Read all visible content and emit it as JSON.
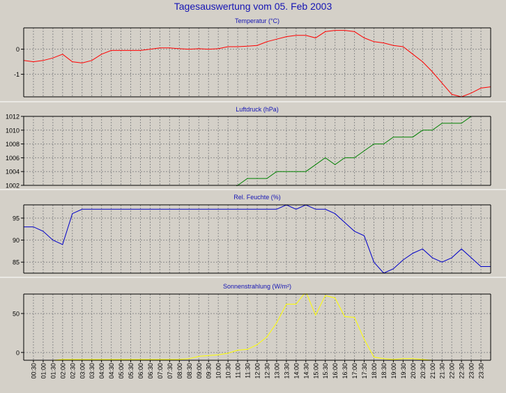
{
  "page": {
    "title": "Tagesauswertung vom 05. Feb 2003"
  },
  "colors": {
    "background": "#d4d0c8",
    "plot_background": "#d4d0c8",
    "title_color": "#1414b4",
    "grid": "#8a8a8a"
  },
  "chart_data": [
    {
      "type": "line",
      "title": "Temperatur (°C)",
      "color": "#ff0000",
      "ylim": [
        -1.9,
        0.85
      ],
      "yticks": [
        0,
        -1
      ],
      "yticklabels": [
        "0",
        "-1"
      ],
      "grid": true,
      "show_xticklabels": false,
      "x": [
        "00:00",
        "00:30",
        "01:00",
        "01:30",
        "02:00",
        "02:30",
        "03:00",
        "03:30",
        "04:00",
        "04:30",
        "05:00",
        "05:30",
        "06:00",
        "06:30",
        "07:00",
        "07:30",
        "08:00",
        "08:30",
        "09:00",
        "09:30",
        "10:00",
        "10:30",
        "11:00",
        "11:30",
        "12:00",
        "12:30",
        "13:00",
        "13:30",
        "14:00",
        "14:30",
        "15:00",
        "15:30",
        "16:00",
        "16:30",
        "17:00",
        "17:30",
        "18:00",
        "18:30",
        "19:00",
        "19:30",
        "20:00",
        "20:30",
        "21:00",
        "21:30",
        "22:00",
        "22:30",
        "23:00",
        "23:30",
        "24:00"
      ],
      "series": [
        {
          "values": [
            -0.45,
            -0.5,
            -0.45,
            -0.35,
            -0.2,
            -0.5,
            -0.55,
            -0.45,
            -0.2,
            -0.05,
            -0.05,
            -0.05,
            -0.05,
            0,
            0.05,
            0.05,
            0.02,
            0,
            0.02,
            0,
            0.02,
            0.1,
            0.1,
            0.12,
            0.15,
            0.3,
            0.4,
            0.5,
            0.55,
            0.55,
            0.45,
            0.7,
            0.75,
            0.75,
            0.7,
            0.45,
            0.3,
            0.25,
            0.15,
            0.1,
            -0.2,
            -0.5,
            -0.9,
            -1.35,
            -1.8,
            -1.9,
            -1.75,
            -1.55,
            -1.5
          ]
        }
      ]
    },
    {
      "type": "line",
      "title": "Luftdruck (hPa)",
      "color": "#008000",
      "ylim": [
        1002,
        1012
      ],
      "yticks": [
        1002,
        1004,
        1006,
        1008,
        1010,
        1012
      ],
      "yticklabels": [
        "1002",
        "1004",
        "1006",
        "1008",
        "1010",
        "1012"
      ],
      "grid": true,
      "show_xticklabels": false,
      "x": [
        "00:00",
        "00:30",
        "01:00",
        "01:30",
        "02:00",
        "02:30",
        "03:00",
        "03:30",
        "04:00",
        "04:30",
        "05:00",
        "05:30",
        "06:00",
        "06:30",
        "07:00",
        "07:30",
        "08:00",
        "08:30",
        "09:00",
        "09:30",
        "10:00",
        "10:30",
        "11:00",
        "11:30",
        "12:00",
        "12:30",
        "13:00",
        "13:30",
        "14:00",
        "14:30",
        "15:00",
        "15:30",
        "16:00",
        "16:30",
        "17:00",
        "17:30",
        "18:00",
        "18:30",
        "19:00",
        "19:30",
        "20:00",
        "20:30",
        "21:00",
        "21:30",
        "22:00",
        "22:30",
        "23:00",
        "23:30",
        "24:00"
      ],
      "series": [
        {
          "values": [
            1001,
            1001,
            1001,
            1001,
            1001,
            1001,
            1001,
            1001,
            1001,
            1001,
            1001,
            1001,
            1001,
            1001,
            1001,
            1001,
            1001,
            1001,
            1001,
            1001,
            1001,
            1001,
            1002,
            1003,
            1003,
            1003,
            1004,
            1004,
            1004,
            1004,
            1005,
            1006,
            1005,
            1006,
            1006,
            1007,
            1008,
            1008,
            1009,
            1009,
            1009,
            1010,
            1010,
            1011,
            1011,
            1011,
            1012,
            1012,
            1012
          ]
        }
      ]
    },
    {
      "type": "line",
      "title": "Rel. Feuchte (%)",
      "color": "#0000c8",
      "ylim": [
        82.5,
        98
      ],
      "yticks": [
        95,
        90,
        85
      ],
      "yticklabels": [
        "95",
        "90",
        "85"
      ],
      "grid": true,
      "show_xticklabels": false,
      "x": [
        "00:00",
        "00:30",
        "01:00",
        "01:30",
        "02:00",
        "02:30",
        "03:00",
        "03:30",
        "04:00",
        "04:30",
        "05:00",
        "05:30",
        "06:00",
        "06:30",
        "07:00",
        "07:30",
        "08:00",
        "08:30",
        "09:00",
        "09:30",
        "10:00",
        "10:30",
        "11:00",
        "11:30",
        "12:00",
        "12:30",
        "13:00",
        "13:30",
        "14:00",
        "14:30",
        "15:00",
        "15:30",
        "16:00",
        "16:30",
        "17:00",
        "17:30",
        "18:00",
        "18:30",
        "19:00",
        "19:30",
        "20:00",
        "20:30",
        "21:00",
        "21:30",
        "22:00",
        "22:30",
        "23:00",
        "23:30",
        "24:00"
      ],
      "series": [
        {
          "values": [
            93,
            93,
            92,
            90,
            89,
            96,
            97,
            97,
            97,
            97,
            97,
            97,
            97,
            97,
            97,
            97,
            97,
            97,
            97,
            97,
            97,
            97,
            97,
            97,
            97,
            97,
            97,
            98,
            97,
            98,
            97,
            97,
            96,
            94,
            92,
            91,
            85,
            82.5,
            83.5,
            85.5,
            87,
            88,
            86,
            85,
            86,
            88,
            86,
            84,
            84
          ]
        }
      ]
    },
    {
      "type": "line",
      "title": "Sonnenstrahlung (W/m²)",
      "color": "#ffff00",
      "ylim": [
        -10,
        75
      ],
      "yticks": [
        50,
        0
      ],
      "yticklabels": [
        "50",
        "0"
      ],
      "grid": true,
      "show_xticklabels": true,
      "x": [
        "00:00",
        "00:30",
        "01:00",
        "01:30",
        "02:00",
        "02:30",
        "03:00",
        "03:30",
        "04:00",
        "04:30",
        "05:00",
        "05:30",
        "06:00",
        "06:30",
        "07:00",
        "07:30",
        "08:00",
        "08:30",
        "09:00",
        "09:30",
        "10:00",
        "10:30",
        "11:00",
        "11:30",
        "12:00",
        "12:30",
        "13:00",
        "13:30",
        "14:00",
        "14:30",
        "15:00",
        "15:30",
        "16:00",
        "16:30",
        "17:00",
        "17:30",
        "18:00",
        "18:30",
        "19:00",
        "19:30",
        "20:00",
        "20:30",
        "21:00",
        "21:30",
        "22:00",
        "22:30",
        "23:00",
        "23:30",
        "24:00"
      ],
      "xticklabels": [
        "00:30",
        "01:00",
        "01:30",
        "02:00",
        "02:30",
        "03:00",
        "03:30",
        "04:00",
        "04:30",
        "05:00",
        "05:30",
        "06:00",
        "06:30",
        "07:00",
        "07:30",
        "08:00",
        "08:30",
        "09:00",
        "09:30",
        "10:00",
        "10:30",
        "11:00",
        "11:30",
        "12:00",
        "12:30",
        "13:00",
        "13:30",
        "14:00",
        "14:30",
        "15:00",
        "15:30",
        "16:00",
        "16:30",
        "17:00",
        "17:30",
        "18:00",
        "18:30",
        "19:00",
        "19:30",
        "20:00",
        "20:30",
        "21:00",
        "21:30",
        "22:00",
        "22:30",
        "23:00",
        "23:30"
      ],
      "series": [
        {
          "values": [
            -10,
            -10,
            -10,
            -10,
            -9,
            -9,
            -9,
            -9,
            -9,
            -9,
            -9,
            -9,
            -9,
            -9,
            -9,
            -9,
            -9,
            -8,
            -5,
            -4,
            -3,
            -1,
            3,
            4,
            10,
            20,
            38,
            62,
            62,
            78,
            48,
            73,
            70,
            46,
            45,
            17,
            -6,
            -8,
            -9,
            -8,
            -8,
            -9,
            -10,
            -10,
            -10,
            -10,
            -10,
            -10,
            -10
          ]
        }
      ]
    }
  ]
}
